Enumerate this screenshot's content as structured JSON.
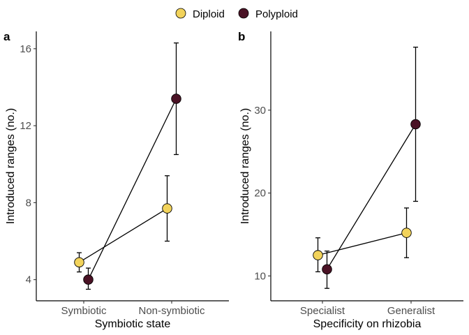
{
  "legend": {
    "entries": [
      {
        "label": "Diploid",
        "color": "#F2D35B"
      },
      {
        "label": "Polyploid",
        "color": "#4A1225"
      }
    ],
    "position": "top-center"
  },
  "chart_data": [
    {
      "type": "line",
      "panel": "a",
      "xlabel": "Symbiotic state",
      "ylabel": "Introduced ranges (no.)",
      "categories": [
        "Symbiotic",
        "Non-symbiotic"
      ],
      "yticks": [
        "4",
        "8",
        "12",
        "16"
      ],
      "ylim": [
        2.9,
        16.9
      ],
      "grid": false,
      "series": [
        {
          "name": "Diploid",
          "color": "#F2D35B",
          "values": [
            4.9,
            7.7
          ],
          "lower": [
            4.4,
            6.0
          ],
          "upper": [
            5.4,
            9.4
          ]
        },
        {
          "name": "Polyploid",
          "color": "#4A1225",
          "values": [
            4.0,
            13.4
          ],
          "lower": [
            3.5,
            10.5
          ],
          "upper": [
            4.6,
            16.3
          ]
        }
      ]
    },
    {
      "type": "line",
      "panel": "b",
      "xlabel": "Specificity on rhizobia",
      "ylabel": "Introduced ranges (no.)",
      "categories": [
        "Specialist",
        "Generalist"
      ],
      "yticks": [
        "10",
        "20",
        "30"
      ],
      "ylim": [
        7,
        39.5
      ],
      "grid": false,
      "series": [
        {
          "name": "Diploid",
          "color": "#F2D35B",
          "values": [
            12.5,
            15.2
          ],
          "lower": [
            10.5,
            12.2
          ],
          "upper": [
            14.6,
            18.2
          ]
        },
        {
          "name": "Polyploid",
          "color": "#4A1225",
          "values": [
            10.8,
            28.3
          ],
          "lower": [
            8.5,
            19.0
          ],
          "upper": [
            13.0,
            37.6
          ]
        }
      ]
    }
  ]
}
